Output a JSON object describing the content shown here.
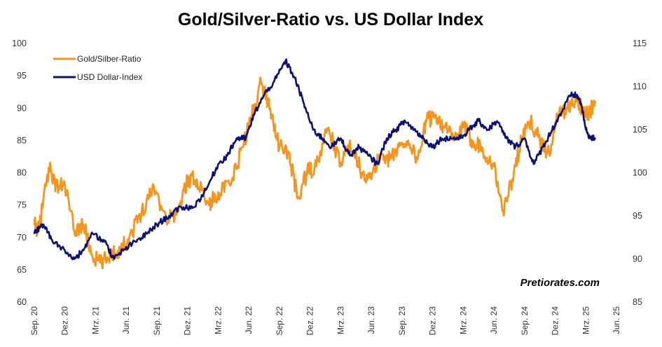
{
  "chart_data": {
    "type": "line",
    "title": "Gold/Silver-Ratio vs. US Dollar Index",
    "watermark": "Pretiorates.com",
    "x_labels": [
      "Sep. 20",
      "Dez. 20",
      "Mrz. 21",
      "Jun. 21",
      "Sep. 21",
      "Dez. 21",
      "Mrz. 22",
      "Jun. 22",
      "Sep. 22",
      "Dez. 22",
      "Mrz. 23",
      "Jun. 23",
      "Sep. 23",
      "Dez. 23",
      "Mrz. 24",
      "Jun. 24",
      "Sep. 24",
      "Dez. 24",
      "Mrz. 25",
      "Jun. 25"
    ],
    "y_left": {
      "min": 60,
      "max": 100,
      "ticks": [
        60,
        65,
        70,
        75,
        80,
        85,
        90,
        95,
        100
      ]
    },
    "y_right": {
      "min": 85,
      "max": 115,
      "ticks": [
        85,
        90,
        95,
        100,
        105,
        110,
        115
      ]
    },
    "series": [
      {
        "name": "Gold/Silber-Ratio",
        "axis": "left",
        "color": "#F7941D",
        "x": [
          0,
          0.15,
          0.3,
          0.5,
          0.7,
          1.0,
          1.3,
          1.6,
          1.9,
          2.2,
          2.5,
          2.8,
          3.1,
          3.5,
          3.9,
          4.3,
          4.7,
          5.0,
          5.3,
          5.7,
          6.0,
          6.4,
          6.8,
          7.1,
          7.4,
          7.7,
          8.0,
          8.3,
          8.6,
          8.9,
          9.2,
          9.6,
          10.0,
          10.3,
          10.7,
          11.0,
          11.3,
          11.6,
          11.9,
          12.2,
          12.5,
          12.8,
          13.1,
          13.4,
          13.7,
          14.0,
          14.3,
          14.6,
          15.0,
          15.3,
          15.6,
          15.9,
          16.2,
          16.5,
          16.8,
          17.1,
          17.4,
          17.7,
          17.9,
          18.1,
          18.3
        ],
        "values": [
          72,
          71,
          76,
          81,
          78,
          78,
          71,
          72,
          67,
          66,
          67.5,
          68,
          70,
          74,
          78,
          73,
          74,
          79,
          79,
          75,
          77,
          78,
          84,
          89,
          94,
          90,
          84,
          83,
          76,
          80,
          81,
          87,
          81,
          85,
          80,
          79,
          83,
          82,
          84,
          85,
          82,
          88,
          89,
          87,
          85,
          87,
          85,
          84,
          81,
          74,
          79,
          85,
          88,
          85,
          83,
          89,
          90,
          91,
          90,
          89,
          91
        ]
      },
      {
        "name": "USD Dollar-Index",
        "axis": "right",
        "color": "#0A1172",
        "x": [
          0,
          0.3,
          0.6,
          1.0,
          1.3,
          1.6,
          1.9,
          2.3,
          2.6,
          2.9,
          3.3,
          3.7,
          4.0,
          4.4,
          4.8,
          5.2,
          5.6,
          6.0,
          6.3,
          6.6,
          6.9,
          7.2,
          7.5,
          7.9,
          8.2,
          8.5,
          8.8,
          9.1,
          9.4,
          9.7,
          10.0,
          10.3,
          10.6,
          10.9,
          11.2,
          11.5,
          11.8,
          12.1,
          12.4,
          12.7,
          13.0,
          13.3,
          13.6,
          13.9,
          14.2,
          14.5,
          14.8,
          15.1,
          15.4,
          15.7,
          16.0,
          16.3,
          16.6,
          16.9,
          17.2,
          17.5,
          17.7,
          17.85,
          18.0,
          18.15,
          18.3
        ],
        "values": [
          93,
          94,
          92,
          91,
          90,
          91,
          93,
          92,
          90,
          91,
          92,
          93,
          94,
          95,
          96,
          96,
          98,
          101,
          102,
          104,
          104,
          107,
          109,
          111,
          113,
          111,
          108,
          105,
          104,
          103,
          104,
          102,
          103,
          102,
          101,
          104,
          105,
          106,
          105,
          104,
          103,
          104,
          104,
          104,
          105,
          106,
          105,
          106,
          104,
          103,
          104,
          101,
          103,
          105,
          107,
          109,
          109,
          108,
          105,
          104,
          104
        ]
      }
    ]
  }
}
